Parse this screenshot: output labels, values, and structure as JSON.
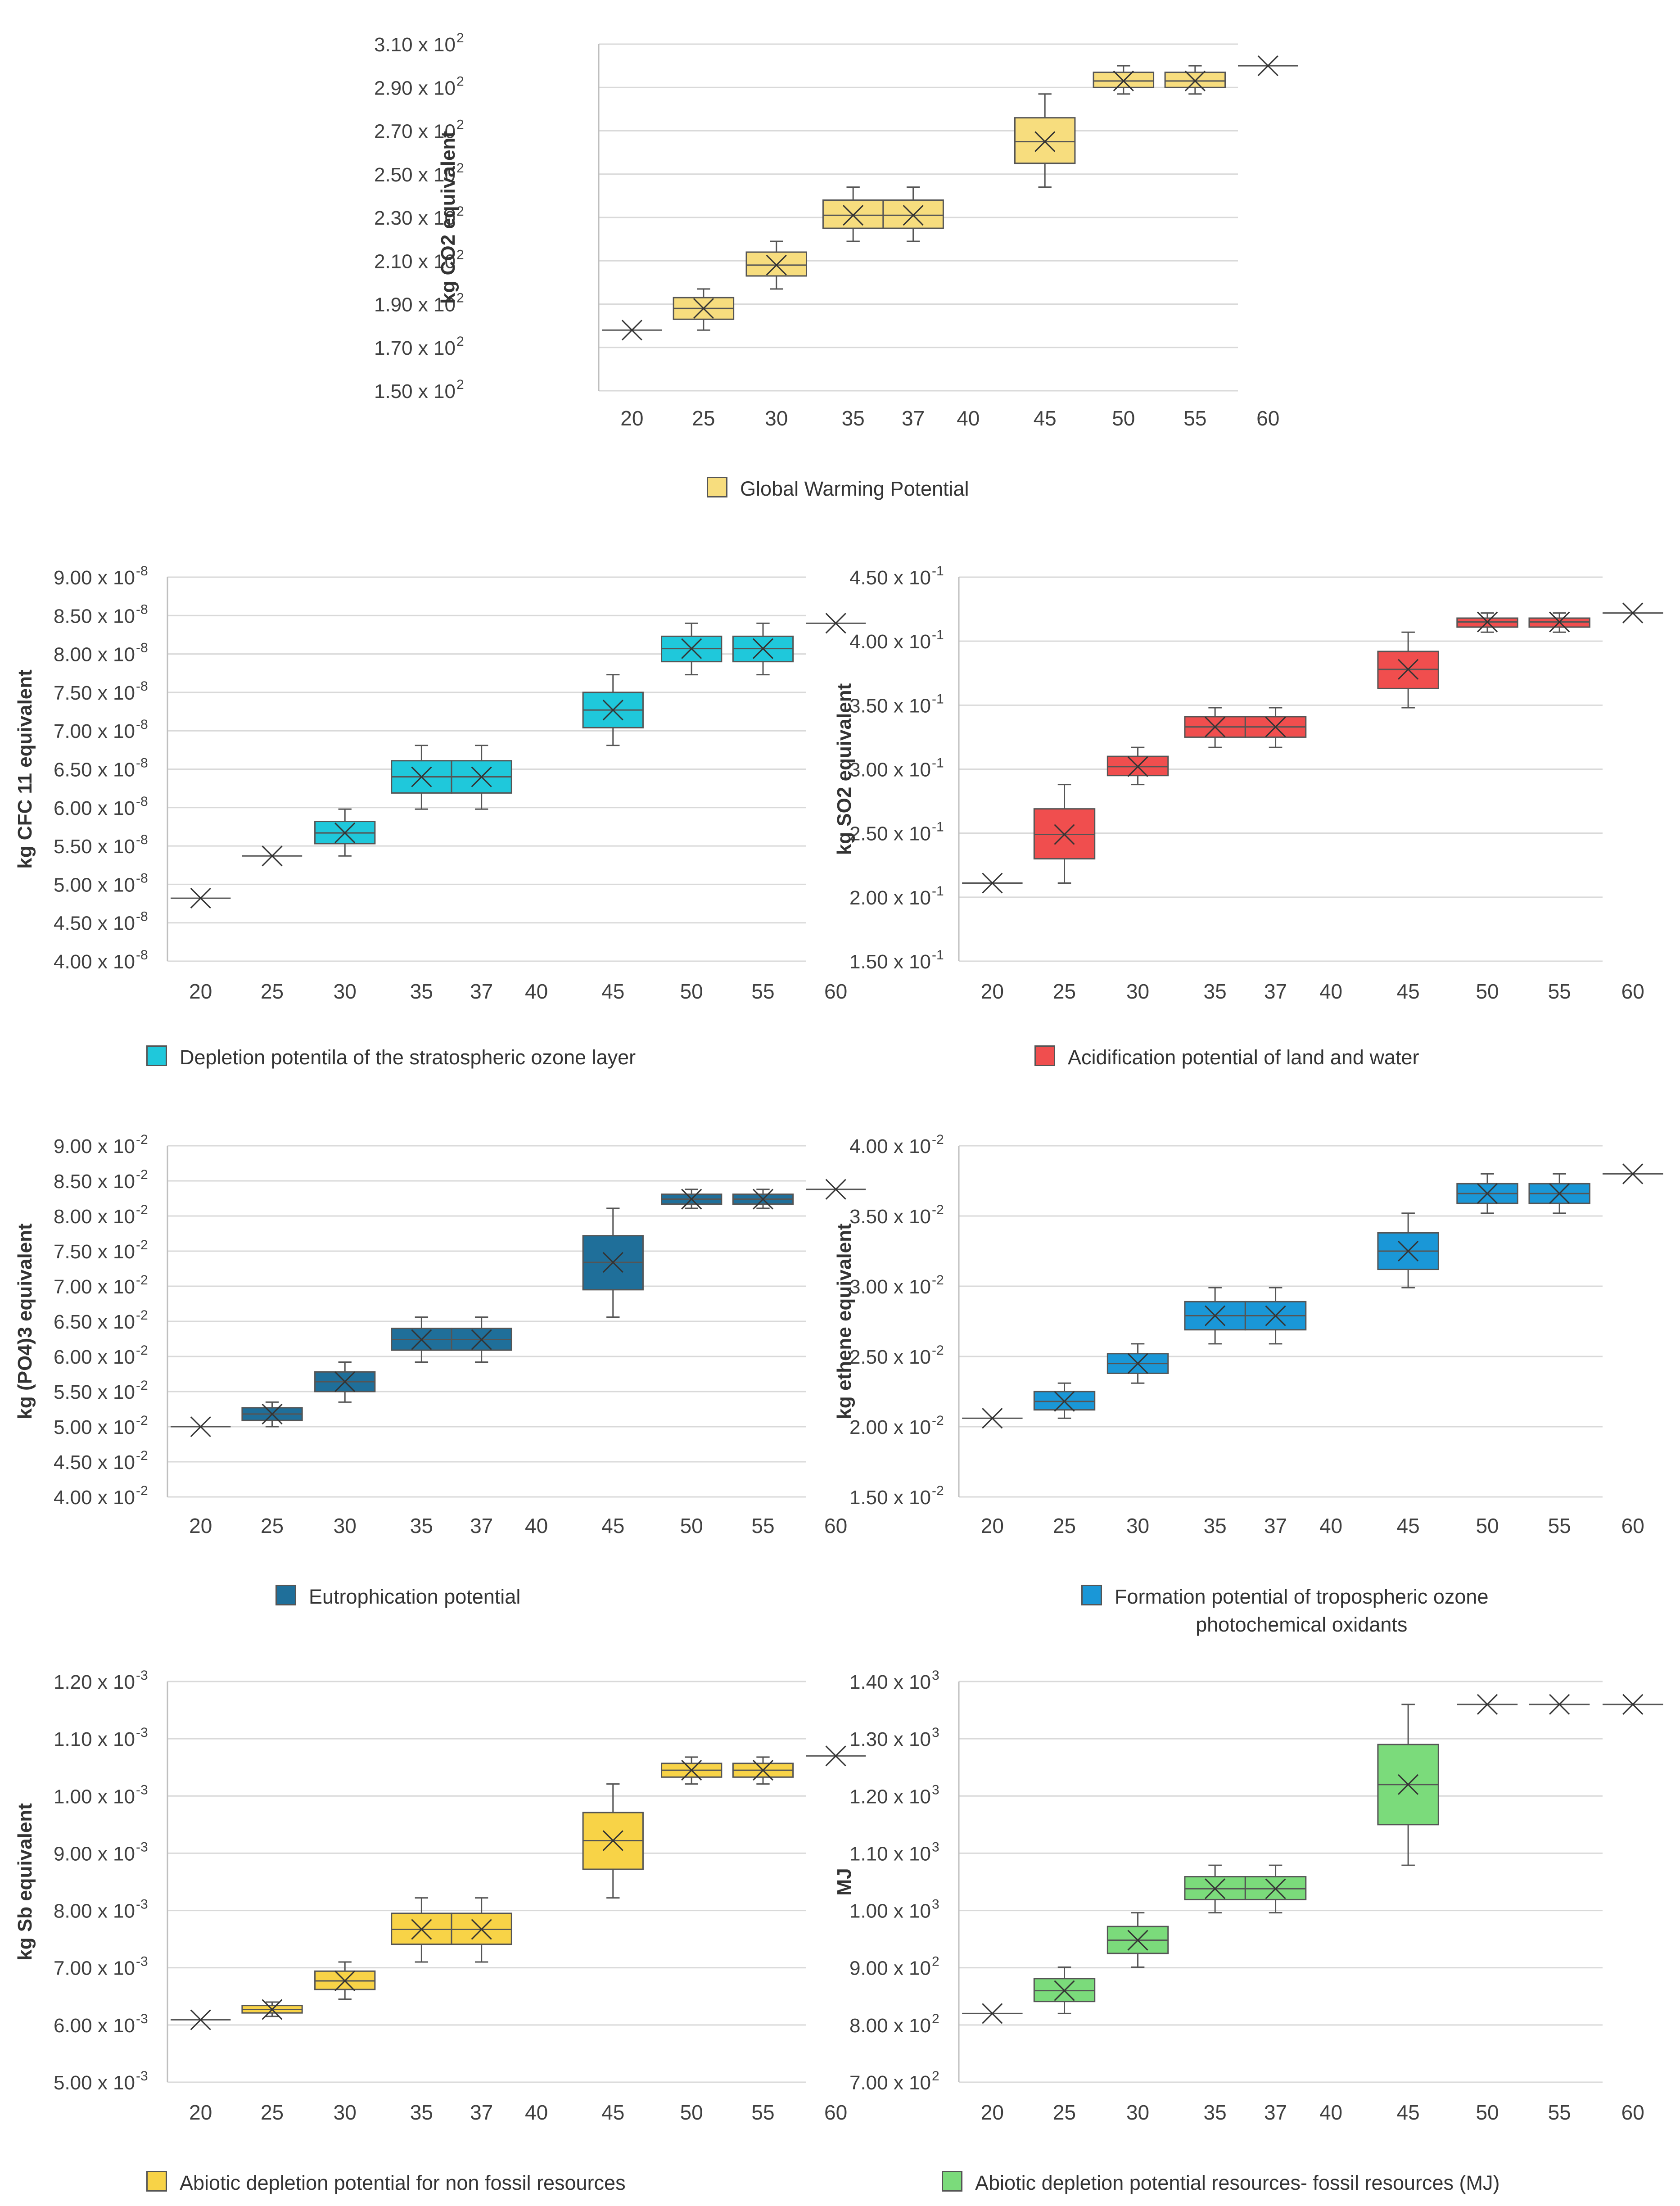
{
  "chart_data": [
    {
      "type": "box",
      "title": "",
      "ylabel": "kg CO2 equivalent",
      "legend": "Global Warming Potential",
      "color": "#F7DD7E",
      "ytick_labels": [
        "1.50",
        "1.70",
        "1.90",
        "2.10",
        "2.30",
        "2.50",
        "2.70",
        "2.90",
        "3.10"
      ],
      "exponent": "2",
      "ylim": [
        150,
        310
      ],
      "categories": [
        "20",
        "25",
        "30",
        "35",
        "37",
        "40",
        "45",
        "50",
        "55",
        "60"
      ],
      "boxes": [
        {
          "x": "20",
          "min": 178,
          "q1": 178,
          "median": 178,
          "q3": 178,
          "max": 178,
          "mean": 178
        },
        {
          "x": "25",
          "min": 178,
          "q1": 183,
          "median": 188,
          "q3": 193,
          "max": 197,
          "mean": 188
        },
        {
          "x": "30",
          "min": 197,
          "q1": 203,
          "median": 208,
          "q3": 214,
          "max": 219,
          "mean": 208
        },
        {
          "x": "35",
          "min": 219,
          "q1": 225,
          "median": 231,
          "q3": 238,
          "max": 244,
          "mean": 231
        },
        {
          "x": "37",
          "min": 219,
          "q1": 225,
          "median": 231,
          "q3": 238,
          "max": 244,
          "mean": 231
        },
        {
          "x": "45",
          "min": 244,
          "q1": 255,
          "median": 265,
          "q3": 276,
          "max": 287,
          "mean": 265
        },
        {
          "x": "50",
          "min": 287,
          "q1": 290,
          "median": 293,
          "q3": 297,
          "max": 300,
          "mean": 293
        },
        {
          "x": "55",
          "min": 287,
          "q1": 290,
          "median": 293,
          "q3": 297,
          "max": 300,
          "mean": 293
        },
        {
          "x": "60",
          "min": 300,
          "q1": 300,
          "median": 300,
          "q3": 300,
          "max": 300,
          "mean": 300
        }
      ]
    },
    {
      "type": "box",
      "title": "",
      "ylabel": "kg CFC  11 equivalent",
      "legend": "Depletion potentila of the stratospheric ozone layer",
      "color": "#1FC8DB",
      "ytick_labels": [
        "4.00",
        "4.50",
        "5.00",
        "5.50",
        "6.00",
        "6.50",
        "7.00",
        "7.50",
        "8.00",
        "8.50",
        "9.00"
      ],
      "exponent": "-8",
      "ylim": [
        4.0,
        9.0
      ],
      "categories": [
        "20",
        "25",
        "30",
        "35",
        "37",
        "40",
        "45",
        "50",
        "55",
        "60"
      ],
      "boxes": [
        {
          "x": "20",
          "min": 4.82,
          "q1": 4.82,
          "median": 4.82,
          "q3": 4.82,
          "max": 4.82,
          "mean": 4.82
        },
        {
          "x": "25",
          "min": 5.37,
          "q1": 5.37,
          "median": 5.37,
          "q3": 5.37,
          "max": 5.37,
          "mean": 5.37
        },
        {
          "x": "30",
          "min": 5.37,
          "q1": 5.53,
          "median": 5.67,
          "q3": 5.82,
          "max": 5.98,
          "mean": 5.67
        },
        {
          "x": "35",
          "min": 5.98,
          "q1": 6.19,
          "median": 6.4,
          "q3": 6.61,
          "max": 6.81,
          "mean": 6.4
        },
        {
          "x": "37",
          "min": 5.98,
          "q1": 6.19,
          "median": 6.4,
          "q3": 6.61,
          "max": 6.81,
          "mean": 6.4
        },
        {
          "x": "45",
          "min": 6.81,
          "q1": 7.04,
          "median": 7.27,
          "q3": 7.5,
          "max": 7.73,
          "mean": 7.27
        },
        {
          "x": "50",
          "min": 7.73,
          "q1": 7.9,
          "median": 8.07,
          "q3": 8.23,
          "max": 8.4,
          "mean": 8.07
        },
        {
          "x": "55",
          "min": 7.73,
          "q1": 7.9,
          "median": 8.07,
          "q3": 8.23,
          "max": 8.4,
          "mean": 8.07
        },
        {
          "x": "60",
          "min": 8.4,
          "q1": 8.4,
          "median": 8.4,
          "q3": 8.4,
          "max": 8.4,
          "mean": 8.4
        }
      ]
    },
    {
      "type": "box",
      "title": "",
      "ylabel": "kg SO2 equivalent",
      "legend": "Acidification potential of land and water",
      "color": "#F04E4E",
      "ytick_labels": [
        "1.50",
        "2.00",
        "2.50",
        "3.00",
        "3.50",
        "4.00",
        "4.50"
      ],
      "exponent": "-1",
      "ylim": [
        1.5,
        4.5
      ],
      "categories": [
        "20",
        "25",
        "30",
        "35",
        "37",
        "40",
        "45",
        "50",
        "55",
        "60"
      ],
      "boxes": [
        {
          "x": "20",
          "min": 2.11,
          "q1": 2.11,
          "median": 2.11,
          "q3": 2.11,
          "max": 2.11,
          "mean": 2.11
        },
        {
          "x": "25",
          "min": 2.11,
          "q1": 2.3,
          "median": 2.49,
          "q3": 2.69,
          "max": 2.88,
          "mean": 2.49
        },
        {
          "x": "30",
          "min": 2.88,
          "q1": 2.95,
          "median": 3.02,
          "q3": 3.1,
          "max": 3.17,
          "mean": 3.02
        },
        {
          "x": "35",
          "min": 3.17,
          "q1": 3.25,
          "median": 3.33,
          "q3": 3.41,
          "max": 3.48,
          "mean": 3.33
        },
        {
          "x": "37",
          "min": 3.17,
          "q1": 3.25,
          "median": 3.33,
          "q3": 3.41,
          "max": 3.48,
          "mean": 3.33
        },
        {
          "x": "45",
          "min": 3.48,
          "q1": 3.63,
          "median": 3.78,
          "q3": 3.92,
          "max": 4.07,
          "mean": 3.78
        },
        {
          "x": "50",
          "min": 4.07,
          "q1": 4.11,
          "median": 4.15,
          "q3": 4.18,
          "max": 4.22,
          "mean": 4.15
        },
        {
          "x": "55",
          "min": 4.07,
          "q1": 4.11,
          "median": 4.15,
          "q3": 4.18,
          "max": 4.22,
          "mean": 4.15
        },
        {
          "x": "60",
          "min": 4.22,
          "q1": 4.22,
          "median": 4.22,
          "q3": 4.22,
          "max": 4.22,
          "mean": 4.22
        }
      ]
    },
    {
      "type": "box",
      "title": "",
      "ylabel": "kg (PO4)3 equivalent",
      "legend": "Eutrophication potential",
      "color": "#1F6F9A",
      "ytick_labels": [
        "4.00",
        "4.50",
        "5.00",
        "5.50",
        "6.00",
        "6.50",
        "7.00",
        "7.50",
        "8.00",
        "8.50",
        "9.00"
      ],
      "exponent": "-2",
      "ylim": [
        4.0,
        9.0
      ],
      "categories": [
        "20",
        "25",
        "30",
        "35",
        "37",
        "40",
        "45",
        "50",
        "55",
        "60"
      ],
      "boxes": [
        {
          "x": "20",
          "min": 5.0,
          "q1": 5.0,
          "median": 5.0,
          "q3": 5.0,
          "max": 5.0,
          "mean": 5.0
        },
        {
          "x": "25",
          "min": 5.0,
          "q1": 5.09,
          "median": 5.18,
          "q3": 5.27,
          "max": 5.35,
          "mean": 5.18
        },
        {
          "x": "30",
          "min": 5.35,
          "q1": 5.5,
          "median": 5.64,
          "q3": 5.78,
          "max": 5.92,
          "mean": 5.64
        },
        {
          "x": "35",
          "min": 5.92,
          "q1": 6.09,
          "median": 6.24,
          "q3": 6.4,
          "max": 6.56,
          "mean": 6.24
        },
        {
          "x": "37",
          "min": 5.92,
          "q1": 6.09,
          "median": 6.24,
          "q3": 6.4,
          "max": 6.56,
          "mean": 6.24
        },
        {
          "x": "45",
          "min": 6.56,
          "q1": 6.95,
          "median": 7.34,
          "q3": 7.72,
          "max": 8.11,
          "mean": 7.34
        },
        {
          "x": "50",
          "min": 8.11,
          "q1": 8.17,
          "median": 8.24,
          "q3": 8.31,
          "max": 8.38,
          "mean": 8.24
        },
        {
          "x": "55",
          "min": 8.11,
          "q1": 8.17,
          "median": 8.24,
          "q3": 8.31,
          "max": 8.38,
          "mean": 8.24
        },
        {
          "x": "60",
          "min": 8.38,
          "q1": 8.38,
          "median": 8.38,
          "q3": 8.38,
          "max": 8.38,
          "mean": 8.38
        }
      ]
    },
    {
      "type": "box",
      "title": "",
      "ylabel": "kg ethene equivalent",
      "legend": "Formation potential of tropospheric ozone photochemical oxidants",
      "legend_lines": [
        "Formation potential of tropospheric ozone",
        "photochemical oxidants"
      ],
      "color": "#1A97D7",
      "ytick_labels": [
        "1.50",
        "2.00",
        "2.50",
        "3.00",
        "3.50",
        "4.00"
      ],
      "exponent": "-2",
      "ylim": [
        1.5,
        4.0
      ],
      "categories": [
        "20",
        "25",
        "30",
        "35",
        "37",
        "40",
        "45",
        "50",
        "55",
        "60"
      ],
      "boxes": [
        {
          "x": "20",
          "min": 2.06,
          "q1": 2.06,
          "median": 2.06,
          "q3": 2.06,
          "max": 2.06,
          "mean": 2.06
        },
        {
          "x": "25",
          "min": 2.06,
          "q1": 2.12,
          "median": 2.18,
          "q3": 2.25,
          "max": 2.31,
          "mean": 2.18
        },
        {
          "x": "30",
          "min": 2.31,
          "q1": 2.38,
          "median": 2.45,
          "q3": 2.52,
          "max": 2.59,
          "mean": 2.45
        },
        {
          "x": "35",
          "min": 2.59,
          "q1": 2.69,
          "median": 2.79,
          "q3": 2.89,
          "max": 2.99,
          "mean": 2.79
        },
        {
          "x": "37",
          "min": 2.59,
          "q1": 2.69,
          "median": 2.79,
          "q3": 2.89,
          "max": 2.99,
          "mean": 2.79
        },
        {
          "x": "45",
          "min": 2.99,
          "q1": 3.12,
          "median": 3.25,
          "q3": 3.38,
          "max": 3.52,
          "mean": 3.25
        },
        {
          "x": "50",
          "min": 3.52,
          "q1": 3.59,
          "median": 3.66,
          "q3": 3.73,
          "max": 3.8,
          "mean": 3.66
        },
        {
          "x": "55",
          "min": 3.52,
          "q1": 3.59,
          "median": 3.66,
          "q3": 3.73,
          "max": 3.8,
          "mean": 3.66
        },
        {
          "x": "60",
          "min": 3.8,
          "q1": 3.8,
          "median": 3.8,
          "q3": 3.8,
          "max": 3.8,
          "mean": 3.8
        }
      ]
    },
    {
      "type": "box",
      "title": "",
      "ylabel": "kg Sb equivalent",
      "legend": "Abiotic depletion potential for non fossil resources",
      "color": "#F8D347",
      "ytick_labels": [
        "5.00",
        "6.00",
        "7.00",
        "8.00",
        "9.00",
        "1.00",
        "1.10",
        "1.20"
      ],
      "exponent": "-3",
      "ylim": [
        5.0,
        12.0
      ],
      "categories": [
        "20",
        "25",
        "30",
        "35",
        "37",
        "40",
        "45",
        "50",
        "55",
        "60"
      ],
      "boxes": [
        {
          "x": "20",
          "min": 6.09,
          "q1": 6.09,
          "median": 6.09,
          "q3": 6.09,
          "max": 6.09,
          "mean": 6.09
        },
        {
          "x": "25",
          "min": 6.15,
          "q1": 6.21,
          "median": 6.27,
          "q3": 6.34,
          "max": 6.4,
          "mean": 6.27
        },
        {
          "x": "30",
          "min": 6.45,
          "q1": 6.62,
          "median": 6.77,
          "q3": 6.94,
          "max": 7.1,
          "mean": 6.77
        },
        {
          "x": "35",
          "min": 7.1,
          "q1": 7.41,
          "median": 7.67,
          "q3": 7.95,
          "max": 8.22,
          "mean": 7.67
        },
        {
          "x": "37",
          "min": 7.1,
          "q1": 7.41,
          "median": 7.67,
          "q3": 7.95,
          "max": 8.22,
          "mean": 7.67
        },
        {
          "x": "45",
          "min": 8.22,
          "q1": 8.72,
          "median": 9.22,
          "q3": 9.71,
          "max": 10.21,
          "mean": 9.22
        },
        {
          "x": "50",
          "min": 10.21,
          "q1": 10.33,
          "median": 10.45,
          "q3": 10.57,
          "max": 10.68,
          "mean": 10.45
        },
        {
          "x": "55",
          "min": 10.21,
          "q1": 10.33,
          "median": 10.45,
          "q3": 10.57,
          "max": 10.68,
          "mean": 10.45
        },
        {
          "x": "60",
          "min": 10.7,
          "q1": 10.7,
          "median": 10.7,
          "q3": 10.7,
          "max": 10.7,
          "mean": 10.7
        }
      ]
    },
    {
      "type": "box",
      "title": "",
      "ylabel": "MJ",
      "legend": "Abiotic depletion potential resources- fossil resources (MJ)",
      "color": "#7BDB7B",
      "ytick_labels": [
        "7.00",
        "8.00",
        "9.00",
        "1.00",
        "1.10",
        "1.20",
        "1.30",
        "1.40"
      ],
      "tick_exponents": [
        "2",
        "2",
        "2",
        "3",
        "3",
        "3",
        "3",
        "3"
      ],
      "exponent": "2",
      "ylim": [
        700,
        1400
      ],
      "categories": [
        "20",
        "25",
        "30",
        "35",
        "37",
        "40",
        "45",
        "50",
        "55",
        "60"
      ],
      "boxes": [
        {
          "x": "20",
          "min": 820,
          "q1": 820,
          "median": 820,
          "q3": 820,
          "max": 820,
          "mean": 820
        },
        {
          "x": "25",
          "min": 820,
          "q1": 841,
          "median": 860,
          "q3": 881,
          "max": 901,
          "mean": 860
        },
        {
          "x": "30",
          "min": 901,
          "q1": 925,
          "median": 948,
          "q3": 972,
          "max": 996,
          "mean": 948
        },
        {
          "x": "35",
          "min": 996,
          "q1": 1019,
          "median": 1038,
          "q3": 1059,
          "max": 1079,
          "mean": 1038
        },
        {
          "x": "37",
          "min": 996,
          "q1": 1019,
          "median": 1038,
          "q3": 1059,
          "max": 1079,
          "mean": 1038
        },
        {
          "x": "45",
          "min": 1079,
          "q1": 1150,
          "median": 1220,
          "q3": 1290,
          "max": 1360,
          "mean": 1220
        },
        {
          "x": "50",
          "min": 1360,
          "q1": 1360,
          "median": 1360,
          "q3": 1360,
          "max": 1360,
          "mean": 1360
        },
        {
          "x": "55",
          "min": 1360,
          "q1": 1360,
          "median": 1360,
          "q3": 1360,
          "max": 1360,
          "mean": 1360
        },
        {
          "x": "60",
          "min": 1360,
          "q1": 1360,
          "median": 1360,
          "q3": 1360,
          "max": 1360,
          "mean": 1360
        }
      ]
    }
  ]
}
